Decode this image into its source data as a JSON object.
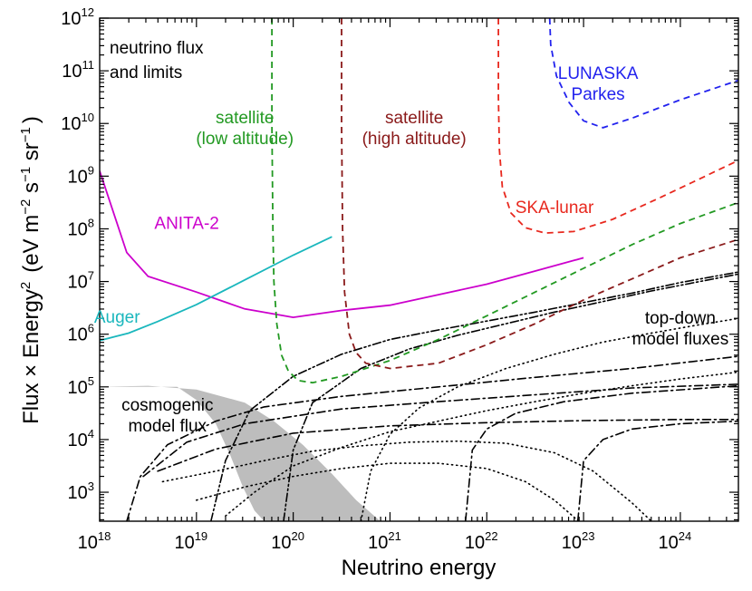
{
  "chart_data": {
    "type": "line",
    "title": "neutrino flux and limits",
    "title_lines": [
      "neutrino flux",
      "and limits"
    ],
    "xlabel": "Neutrino energy",
    "ylabel": {
      "text": "Flux × Energy",
      "superscript": "2",
      "units": "(eV m",
      "units_exp1": "−2",
      "units_mid": " s",
      "units_exp2": "−1",
      "units_mid2": " sr",
      "units_exp3": "−1",
      "units_end": ")"
    },
    "x_scale": "log",
    "y_scale": "log",
    "xlim_log10": [
      18,
      24.6
    ],
    "ylim_log10": [
      2.45,
      12
    ],
    "x_ticks": [
      {
        "base": "10",
        "exp": "18",
        "value": 18
      },
      {
        "base": "10",
        "exp": "19",
        "value": 19
      },
      {
        "base": "10",
        "exp": "20",
        "value": 20
      },
      {
        "base": "10",
        "exp": "21",
        "value": 21
      },
      {
        "base": "10",
        "exp": "22",
        "value": 22
      },
      {
        "base": "10",
        "exp": "23",
        "value": 23
      },
      {
        "base": "10",
        "exp": "24",
        "value": 24
      }
    ],
    "y_ticks": [
      {
        "base": "10",
        "exp": "3",
        "value": 3
      },
      {
        "base": "10",
        "exp": "4",
        "value": 4
      },
      {
        "base": "10",
        "exp": "5",
        "value": 5
      },
      {
        "base": "10",
        "exp": "6",
        "value": 6
      },
      {
        "base": "10",
        "exp": "7",
        "value": 7
      },
      {
        "base": "10",
        "exp": "8",
        "value": 8
      },
      {
        "base": "10",
        "exp": "9",
        "value": 9
      },
      {
        "base": "10",
        "exp": "10",
        "value": 10
      },
      {
        "base": "10",
        "exp": "11",
        "value": 11
      },
      {
        "base": "10",
        "exp": "12",
        "value": 12
      }
    ],
    "series": [
      {
        "name": "ANITA-2",
        "label_lines": [
          "ANITA-2"
        ],
        "label_at": [
          18.9,
          8.0
        ],
        "color": "#cc00cc",
        "style": "solid",
        "points": [
          [
            18.0,
            9.1
          ],
          [
            18.28,
            7.55
          ],
          [
            18.5,
            7.1
          ],
          [
            19.0,
            6.8
          ],
          [
            19.5,
            6.48
          ],
          [
            20.0,
            6.32
          ],
          [
            20.5,
            6.45
          ],
          [
            21.0,
            6.55
          ],
          [
            21.5,
            6.75
          ],
          [
            22.0,
            6.95
          ],
          [
            22.5,
            7.2
          ],
          [
            23.0,
            7.45
          ]
        ]
      },
      {
        "name": "Auger",
        "label_lines": [
          "Auger"
        ],
        "label_at": [
          18.18,
          6.22
        ],
        "color": "#1ab7bd",
        "style": "solid",
        "points": [
          [
            18.0,
            5.88
          ],
          [
            18.3,
            6.02
          ],
          [
            18.6,
            6.24
          ],
          [
            19.0,
            6.56
          ],
          [
            19.5,
            7.03
          ],
          [
            20.0,
            7.5
          ],
          [
            20.4,
            7.85
          ]
        ]
      },
      {
        "name": "satellite (low altitude)",
        "label_lines": [
          "satellite",
          "(low altitude)"
        ],
        "label_at": [
          19.5,
          10.0
        ],
        "color": "#229922",
        "style": "dashed",
        "points": [
          [
            19.78,
            12.0
          ],
          [
            19.78,
            10.0
          ],
          [
            19.79,
            8.0
          ],
          [
            19.8,
            7.0
          ],
          [
            19.83,
            6.2
          ],
          [
            19.88,
            5.6
          ],
          [
            19.95,
            5.3
          ],
          [
            20.05,
            5.12
          ],
          [
            20.2,
            5.08
          ],
          [
            20.5,
            5.2
          ],
          [
            21.0,
            5.5
          ],
          [
            21.5,
            5.9
          ],
          [
            22.0,
            6.35
          ],
          [
            22.5,
            6.8
          ],
          [
            23.0,
            7.25
          ],
          [
            23.5,
            7.7
          ],
          [
            24.0,
            8.1
          ],
          [
            24.6,
            8.5
          ]
        ]
      },
      {
        "name": "satellite (high altitude)",
        "label_lines": [
          "satellite",
          "(high altitude)"
        ],
        "label_at": [
          21.25,
          10.0
        ],
        "color": "#8a1a1a",
        "style": "dashed",
        "points": [
          [
            20.5,
            12.0
          ],
          [
            20.5,
            10.0
          ],
          [
            20.51,
            8.0
          ],
          [
            20.53,
            6.8
          ],
          [
            20.58,
            6.0
          ],
          [
            20.65,
            5.65
          ],
          [
            20.75,
            5.45
          ],
          [
            21.0,
            5.35
          ],
          [
            21.5,
            5.45
          ],
          [
            22.0,
            5.8
          ],
          [
            22.5,
            6.2
          ],
          [
            23.0,
            6.65
          ],
          [
            23.5,
            7.05
          ],
          [
            24.0,
            7.45
          ],
          [
            24.6,
            7.8
          ]
        ]
      },
      {
        "name": "SKA-lunar",
        "label_lines": [
          "SKA-lunar"
        ],
        "label_at": [
          22.7,
          8.3
        ],
        "color": "#e8281e",
        "style": "dashed",
        "points": [
          [
            22.12,
            12.0
          ],
          [
            22.12,
            10.5
          ],
          [
            22.13,
            9.5
          ],
          [
            22.16,
            8.8
          ],
          [
            22.25,
            8.3
          ],
          [
            22.4,
            8.02
          ],
          [
            22.6,
            7.92
          ],
          [
            22.9,
            7.95
          ],
          [
            23.3,
            8.18
          ],
          [
            23.8,
            8.6
          ],
          [
            24.2,
            8.95
          ],
          [
            24.6,
            9.3
          ]
        ]
      },
      {
        "name": "LUNASKA Parkes",
        "label_lines": [
          "LUNASKA",
          "Parkes"
        ],
        "label_at": [
          23.15,
          10.85
        ],
        "color": "#2222ee",
        "style": "dashed",
        "points": [
          [
            22.65,
            12.0
          ],
          [
            22.66,
            11.5
          ],
          [
            22.72,
            10.9
          ],
          [
            22.85,
            10.4
          ],
          [
            23.0,
            10.05
          ],
          [
            23.2,
            9.92
          ],
          [
            23.5,
            10.1
          ],
          [
            24.0,
            10.45
          ],
          [
            24.6,
            10.82
          ]
        ]
      }
    ],
    "cosmogenic_band": {
      "label_lines": [
        "cosmogenic",
        "model flux"
      ],
      "label_at": [
        18.7,
        4.55
      ],
      "color": "#bdbdbd",
      "upper": [
        [
          18.0,
          5.0
        ],
        [
          18.5,
          5.02
        ],
        [
          19.0,
          4.95
        ],
        [
          19.5,
          4.7
        ],
        [
          19.8,
          4.35
        ],
        [
          20.1,
          3.9
        ],
        [
          20.4,
          3.35
        ],
        [
          20.65,
          2.85
        ],
        [
          20.9,
          2.45
        ]
      ],
      "lower": [
        [
          18.8,
          5.0
        ],
        [
          19.0,
          4.75
        ],
        [
          19.2,
          4.3
        ],
        [
          19.35,
          3.7
        ],
        [
          19.48,
          3.1
        ],
        [
          19.6,
          2.65
        ],
        [
          19.7,
          2.45
        ]
      ]
    },
    "top_down": {
      "label_lines": [
        "top-down",
        "model fluxes"
      ],
      "label_at": [
        24.0,
        6.2
      ],
      "curves": [
        {
          "style": "dashdotdot",
          "points": [
            [
              19.15,
              2.45
            ],
            [
              19.3,
              3.6
            ],
            [
              19.55,
              4.55
            ],
            [
              20.0,
              5.2
            ],
            [
              20.5,
              5.62
            ],
            [
              21.0,
              5.9
            ],
            [
              21.5,
              6.08
            ],
            [
              22.0,
              6.25
            ],
            [
              22.5,
              6.42
            ],
            [
              23.0,
              6.6
            ],
            [
              23.5,
              6.78
            ],
            [
              24.0,
              6.98
            ],
            [
              24.6,
              7.18
            ]
          ]
        },
        {
          "style": "dashdot",
          "points": [
            [
              18.28,
              2.45
            ],
            [
              18.42,
              3.3
            ],
            [
              18.7,
              3.9
            ],
            [
              19.2,
              4.35
            ],
            [
              19.7,
              4.62
            ],
            [
              20.5,
              4.82
            ],
            [
              21.5,
              5.0
            ],
            [
              22.5,
              5.18
            ],
            [
              23.5,
              5.35
            ],
            [
              24.6,
              5.58
            ]
          ]
        },
        {
          "style": "dashdot",
          "points": [
            [
              18.45,
              3.3
            ],
            [
              18.9,
              3.95
            ],
            [
              19.5,
              4.3
            ],
            [
              20.5,
              4.58
            ],
            [
              21.5,
              4.72
            ],
            [
              22.5,
              4.85
            ],
            [
              23.5,
              4.98
            ],
            [
              24.6,
              5.05
            ]
          ]
        },
        {
          "style": "dashdot",
          "points": [
            [
              18.6,
              3.4
            ],
            [
              19.2,
              3.82
            ],
            [
              20.0,
              4.12
            ],
            [
              21.0,
              4.26
            ],
            [
              22.0,
              4.32
            ],
            [
              23.0,
              4.36
            ],
            [
              24.0,
              4.38
            ],
            [
              24.6,
              4.38
            ]
          ]
        },
        {
          "style": "dashdotdot",
          "points": [
            [
              19.9,
              2.45
            ],
            [
              20.0,
              3.8
            ],
            [
              20.2,
              4.7
            ],
            [
              20.7,
              5.35
            ],
            [
              21.2,
              5.72
            ],
            [
              21.7,
              5.98
            ],
            [
              22.2,
              6.2
            ],
            [
              22.7,
              6.42
            ],
            [
              23.2,
              6.62
            ],
            [
              23.7,
              6.82
            ],
            [
              24.2,
              7.0
            ],
            [
              24.6,
              7.14
            ]
          ]
        },
        {
          "style": "dashdot",
          "points": [
            [
              21.78,
              2.45
            ],
            [
              21.85,
              3.8
            ],
            [
              22.0,
              4.2
            ],
            [
              22.3,
              4.5
            ],
            [
              22.8,
              4.72
            ],
            [
              23.5,
              4.88
            ],
            [
              24.6,
              5.02
            ]
          ]
        },
        {
          "style": "dashdot",
          "points": [
            [
              22.94,
              2.45
            ],
            [
              23.0,
              3.6
            ],
            [
              23.2,
              4.0
            ],
            [
              23.5,
              4.2
            ],
            [
              24.0,
              4.3
            ],
            [
              24.6,
              4.35
            ]
          ]
        },
        {
          "style": "dotted",
          "points": [
            [
              18.65,
              3.2
            ],
            [
              19.2,
              3.4
            ],
            [
              19.7,
              3.6
            ],
            [
              20.2,
              3.78
            ],
            [
              20.7,
              3.88
            ],
            [
              21.2,
              3.95
            ],
            [
              21.7,
              3.97
            ],
            [
              22.2,
              3.93
            ],
            [
              22.7,
              3.75
            ],
            [
              23.1,
              3.4
            ],
            [
              23.5,
              2.8
            ],
            [
              23.7,
              2.45
            ]
          ]
        },
        {
          "style": "dotted",
          "points": [
            [
              19.0,
              2.85
            ],
            [
              19.5,
              3.1
            ],
            [
              20.0,
              3.3
            ],
            [
              20.5,
              3.45
            ],
            [
              21.0,
              3.55
            ],
            [
              21.5,
              3.55
            ],
            [
              22.0,
              3.45
            ],
            [
              22.4,
              3.2
            ],
            [
              22.7,
              2.85
            ],
            [
              22.95,
              2.45
            ]
          ]
        },
        {
          "style": "dotted",
          "points": [
            [
              19.3,
              2.55
            ],
            [
              19.6,
              3.0
            ],
            [
              20.0,
              3.5
            ],
            [
              20.5,
              3.85
            ],
            [
              21.0,
              4.15
            ],
            [
              21.5,
              4.35
            ],
            [
              22.0,
              4.55
            ],
            [
              22.5,
              4.72
            ],
            [
              23.0,
              4.88
            ],
            [
              23.5,
              5.02
            ],
            [
              24.0,
              5.15
            ],
            [
              24.6,
              5.28
            ]
          ]
        },
        {
          "style": "dotted",
          "points": [
            [
              20.7,
              2.45
            ],
            [
              20.8,
              3.4
            ],
            [
              21.0,
              4.1
            ],
            [
              21.3,
              4.6
            ],
            [
              21.7,
              5.0
            ],
            [
              22.2,
              5.35
            ],
            [
              22.7,
              5.62
            ],
            [
              23.2,
              5.85
            ],
            [
              23.7,
              6.02
            ],
            [
              24.2,
              6.18
            ],
            [
              24.6,
              6.3
            ]
          ]
        }
      ]
    }
  }
}
